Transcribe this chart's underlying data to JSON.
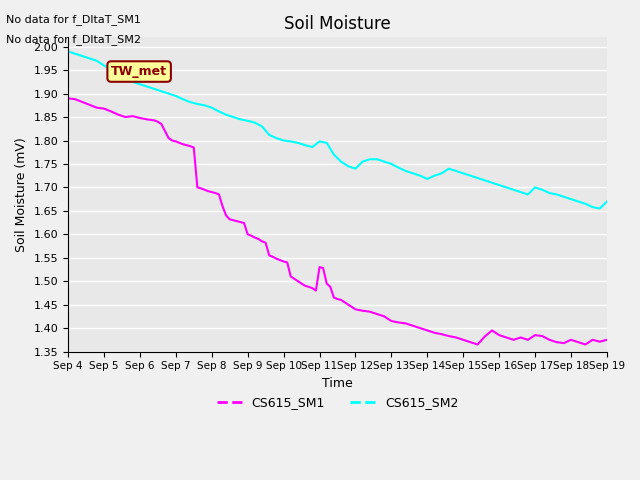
{
  "title": "Soil Moisture",
  "xlabel": "Time",
  "ylabel": "Soil Moisture (mV)",
  "ylim": [
    1.35,
    2.02
  ],
  "xlim": [
    0,
    15
  ],
  "x_tick_labels": [
    "Sep 4",
    "Sep 5",
    "Sep 6",
    "Sep 7",
    "Sep 8",
    "Sep 9",
    "Sep 10",
    "Sep 11",
    "Sep 12",
    "Sep 13",
    "Sep 14",
    "Sep 15",
    "Sep 16",
    "Sep 17",
    "Sep 18",
    "Sep 19"
  ],
  "no_data_text1": "No data for f_DltaT_SM1",
  "no_data_text2": "No data for f_DltaT_SM2",
  "tw_met_label": "TW_met",
  "legend_labels": [
    "CS615_SM1",
    "CS615_SM2"
  ],
  "line1_color": "#FF00FF",
  "line2_color": "#00FFFF",
  "background_color": "#E8E8E8",
  "plot_bg_color": "#E8E8E8",
  "sm1_x": [
    0,
    0.2,
    0.4,
    0.6,
    0.8,
    1.0,
    1.2,
    1.4,
    1.6,
    1.8,
    2.0,
    2.2,
    2.4,
    2.5,
    2.6,
    2.7,
    2.8,
    2.9,
    3.0,
    3.1,
    3.2,
    3.3,
    3.4,
    3.5,
    3.6,
    3.7,
    3.8,
    3.9,
    4.0,
    4.1,
    4.2,
    4.3,
    4.4,
    4.5,
    4.6,
    4.7,
    4.8,
    4.9,
    5.0,
    5.1,
    5.2,
    5.3,
    5.4,
    5.5,
    5.6,
    5.7,
    5.8,
    5.9,
    6.0,
    6.1,
    6.2,
    6.3,
    6.4,
    6.5,
    6.6,
    6.7,
    6.8,
    6.9,
    7.0,
    7.1,
    7.2,
    7.3,
    7.4,
    7.5,
    7.6,
    7.7,
    7.8,
    7.9,
    8.0,
    8.2,
    8.4,
    8.6,
    8.8,
    9.0,
    9.2,
    9.4,
    9.6,
    9.8,
    10.0,
    10.2,
    10.4,
    10.6,
    10.8,
    11.0,
    11.2,
    11.4,
    11.6,
    11.8,
    12.0,
    12.2,
    12.4,
    12.6,
    12.8,
    13.0,
    13.2,
    13.4,
    13.6,
    13.8,
    14.0,
    14.2,
    14.4,
    14.6,
    14.8,
    15.0
  ],
  "sm1_y": [
    1.89,
    1.888,
    1.882,
    1.876,
    1.87,
    1.868,
    1.862,
    1.855,
    1.85,
    1.852,
    1.848,
    1.845,
    1.843,
    1.84,
    1.835,
    1.82,
    1.805,
    1.8,
    1.798,
    1.795,
    1.792,
    1.79,
    1.788,
    1.785,
    1.7,
    1.698,
    1.695,
    1.692,
    1.69,
    1.688,
    1.685,
    1.66,
    1.64,
    1.632,
    1.63,
    1.628,
    1.626,
    1.624,
    1.6,
    1.597,
    1.593,
    1.59,
    1.585,
    1.582,
    1.555,
    1.552,
    1.548,
    1.545,
    1.542,
    1.54,
    1.51,
    1.505,
    1.5,
    1.495,
    1.49,
    1.488,
    1.485,
    1.48,
    1.53,
    1.528,
    1.495,
    1.488,
    1.465,
    1.462,
    1.46,
    1.455,
    1.45,
    1.445,
    1.44,
    1.437,
    1.435,
    1.43,
    1.425,
    1.415,
    1.412,
    1.41,
    1.405,
    1.4,
    1.395,
    1.39,
    1.387,
    1.383,
    1.38,
    1.375,
    1.37,
    1.365,
    1.382,
    1.395,
    1.385,
    1.38,
    1.375,
    1.38,
    1.375,
    1.385,
    1.383,
    1.375,
    1.37,
    1.368,
    1.375,
    1.37,
    1.365,
    1.375,
    1.371,
    1.375
  ],
  "sm2_x": [
    0,
    0.2,
    0.4,
    0.6,
    0.8,
    1.0,
    1.2,
    1.4,
    1.6,
    1.8,
    2.0,
    2.2,
    2.4,
    2.6,
    2.8,
    3.0,
    3.2,
    3.4,
    3.6,
    3.8,
    4.0,
    4.2,
    4.4,
    4.6,
    4.8,
    5.0,
    5.2,
    5.4,
    5.6,
    5.8,
    6.0,
    6.2,
    6.4,
    6.6,
    6.8,
    7.0,
    7.2,
    7.4,
    7.6,
    7.8,
    8.0,
    8.2,
    8.4,
    8.6,
    8.8,
    9.0,
    9.2,
    9.4,
    9.6,
    9.8,
    10.0,
    10.2,
    10.4,
    10.6,
    10.8,
    11.0,
    11.2,
    11.4,
    11.6,
    11.8,
    12.0,
    12.2,
    12.4,
    12.6,
    12.8,
    13.0,
    13.2,
    13.4,
    13.6,
    13.8,
    14.0,
    14.2,
    14.4,
    14.6,
    14.8,
    15.0
  ],
  "sm2_y": [
    1.99,
    1.985,
    1.98,
    1.975,
    1.97,
    1.96,
    1.952,
    1.945,
    1.935,
    1.925,
    1.92,
    1.915,
    1.91,
    1.905,
    1.9,
    1.895,
    1.888,
    1.882,
    1.878,
    1.875,
    1.87,
    1.862,
    1.855,
    1.85,
    1.845,
    1.842,
    1.838,
    1.83,
    1.812,
    1.805,
    1.8,
    1.798,
    1.795,
    1.79,
    1.786,
    1.798,
    1.795,
    1.77,
    1.755,
    1.745,
    1.74,
    1.755,
    1.76,
    1.76,
    1.755,
    1.75,
    1.742,
    1.735,
    1.73,
    1.725,
    1.718,
    1.725,
    1.73,
    1.74,
    1.735,
    1.73,
    1.725,
    1.72,
    1.715,
    1.71,
    1.705,
    1.7,
    1.695,
    1.69,
    1.685,
    1.7,
    1.695,
    1.688,
    1.685,
    1.68,
    1.675,
    1.67,
    1.665,
    1.658,
    1.655,
    1.67
  ]
}
